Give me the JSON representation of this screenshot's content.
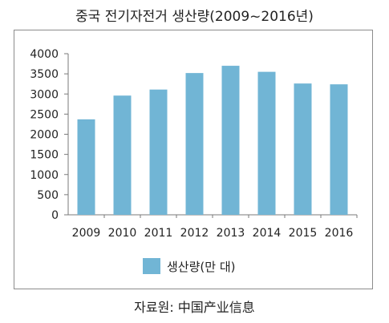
{
  "title": "중국 전기자전거 생산량(2009~2016년)",
  "source": "자료원: 中国产业信息",
  "chart_data": {
    "type": "bar",
    "categories": [
      "2009",
      "2010",
      "2011",
      "2012",
      "2013",
      "2014",
      "2015",
      "2016"
    ],
    "series": [
      {
        "name": "생산량(만 대)",
        "values": [
          2370,
          2960,
          3110,
          3520,
          3700,
          3550,
          3260,
          3240
        ],
        "color": "#71b5d5"
      }
    ],
    "ylim": [
      0,
      4000
    ],
    "yticks": [
      0,
      500,
      1000,
      1500,
      2000,
      2500,
      3000,
      3500,
      4000
    ],
    "grid": false,
    "legend": "bottom"
  }
}
